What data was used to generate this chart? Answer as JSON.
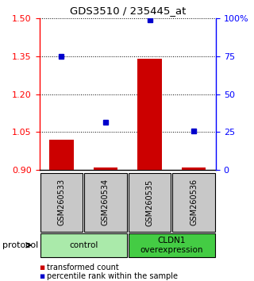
{
  "title": "GDS3510 / 235445_at",
  "samples": [
    "GSM260533",
    "GSM260534",
    "GSM260535",
    "GSM260536"
  ],
  "bar_values": [
    1.02,
    0.91,
    1.34,
    0.91
  ],
  "bar_base": 0.9,
  "dot_values": [
    1.35,
    1.09,
    1.495,
    1.055
  ],
  "ylim": [
    0.9,
    1.5
  ],
  "yticks_left": [
    0.9,
    1.05,
    1.2,
    1.35,
    1.5
  ],
  "yticks_right": [
    0,
    25,
    50,
    75,
    100
  ],
  "bar_color": "#cc0000",
  "dot_color": "#0000cc",
  "groups": [
    {
      "label": "control",
      "samples": [
        0,
        1
      ],
      "color": "#aaeaaa"
    },
    {
      "label": "CLDN1\noverexpression",
      "samples": [
        2,
        3
      ],
      "color": "#44cc44"
    }
  ],
  "protocol_label": "protocol",
  "legend_bar_label": "transformed count",
  "legend_dot_label": "percentile rank within the sample",
  "sample_box_color": "#c8c8c8",
  "sample_box_edge": "#000000"
}
